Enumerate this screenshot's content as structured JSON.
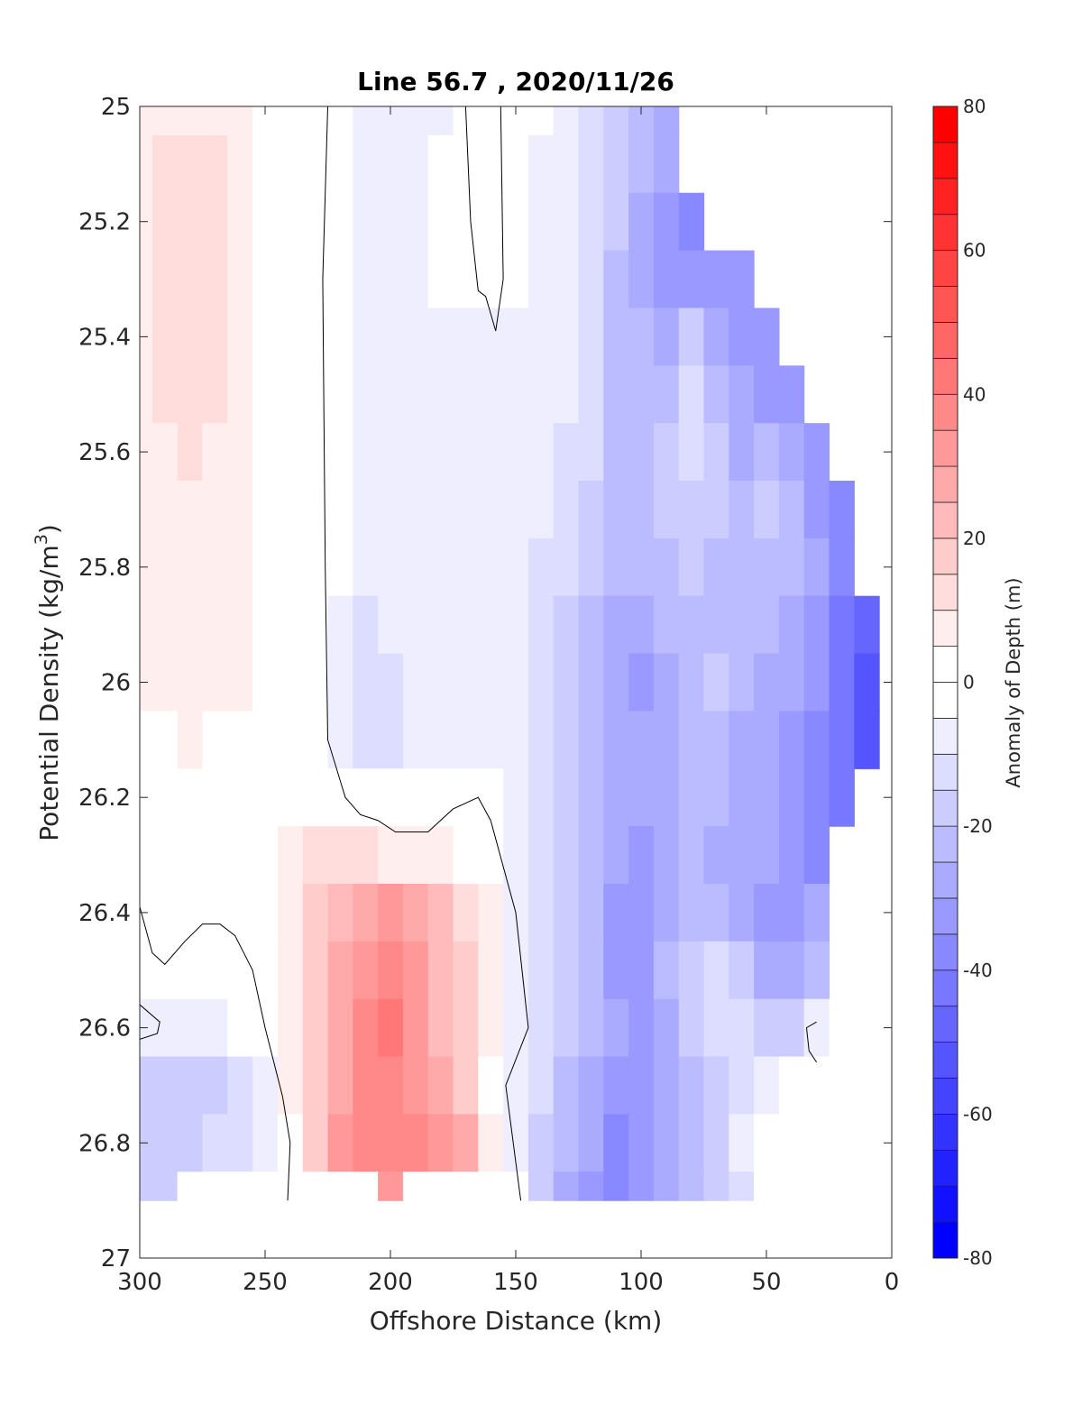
{
  "chart_data": {
    "type": "heatmap",
    "title": "Line 56.7 , 2020/11/26",
    "xlabel": "Offshore Distance (km)",
    "ylabel": "Potential Density (kg/m^3)",
    "ylabel_main": "Potential Density (kg/m",
    "ylabel_sup": "3",
    "ylabel_close": ")",
    "colorbar_label": "Anomaly of Depth (m)",
    "xlim": [
      300,
      0
    ],
    "ylim": [
      25,
      27
    ],
    "data_ylim": [
      25,
      26.9
    ],
    "x_ticks": [
      300,
      250,
      200,
      150,
      100,
      50,
      0
    ],
    "x_tick_labels": [
      "300",
      "250",
      "200",
      "150",
      "100",
      "50",
      "0"
    ],
    "y_ticks": [
      25,
      25.2,
      25.4,
      25.6,
      25.8,
      26,
      26.2,
      26.4,
      26.6,
      26.8,
      27
    ],
    "y_tick_labels": [
      "25",
      "25.2",
      "25.4",
      "25.6",
      "25.8",
      "26",
      "26.2",
      "26.4",
      "26.6",
      "26.8",
      "27"
    ],
    "colorbar_range": [
      -80,
      80
    ],
    "contour_step": 5,
    "colorbar_ticks": [
      80,
      60,
      40,
      20,
      0,
      -20,
      -40,
      -60,
      -80
    ],
    "colorbar_tick_labels": [
      "80",
      "60",
      "40",
      "20",
      "0",
      "-20",
      "-40",
      "-60",
      "-80"
    ],
    "colors": {
      "positive": "#ff0000",
      "negative": "#0000ff",
      "zero": "#ffffff",
      "contour": "#000000"
    },
    "x": [
      300,
      290,
      280,
      270,
      260,
      250,
      240,
      230,
      220,
      210,
      200,
      190,
      180,
      170,
      160,
      150,
      140,
      130,
      120,
      110,
      100,
      90,
      80,
      70,
      60,
      50,
      40,
      30,
      20,
      10
    ],
    "y": [
      25.0,
      25.1,
      25.2,
      25.3,
      25.4,
      25.5,
      25.6,
      25.7,
      25.8,
      25.9,
      26.0,
      26.1,
      26.2,
      26.3,
      26.4,
      26.5,
      26.6,
      26.7,
      26.8,
      26.9
    ],
    "z": [
      [
        6,
        8,
        9,
        8,
        7,
        3,
        0,
        0,
        -2,
        -6,
        -6,
        -6,
        -6,
        0,
        0,
        -2,
        -4,
        -6,
        -10,
        -15,
        -20,
        -25,
        null,
        null,
        null,
        null,
        null,
        null,
        null,
        null
      ],
      [
        7,
        10,
        12,
        10,
        8,
        3,
        0,
        0,
        -2,
        -6,
        -6,
        -6,
        -2,
        0,
        0,
        -3,
        -5,
        -7,
        -12,
        -18,
        -22,
        -28,
        null,
        null,
        null,
        null,
        null,
        null,
        null,
        null
      ],
      [
        7,
        11,
        13,
        11,
        8,
        3,
        0,
        0,
        -2,
        -6,
        -7,
        -6,
        -2,
        0,
        0,
        -3,
        -5,
        -8,
        -13,
        -18,
        -25,
        -32,
        -38,
        null,
        null,
        null,
        null,
        null,
        null,
        null
      ],
      [
        7,
        11,
        13,
        11,
        8,
        3,
        0,
        0,
        -3,
        -7,
        -7,
        -6,
        -3,
        0,
        -2,
        -4,
        -6,
        -8,
        -14,
        -20,
        -25,
        -30,
        -30,
        -32,
        -33,
        null,
        null,
        null,
        null,
        null
      ],
      [
        7,
        11,
        13,
        11,
        8,
        3,
        0,
        0,
        -3,
        -7,
        -7,
        -6,
        -5,
        -5,
        -5,
        -5,
        -6,
        -8,
        -14,
        -20,
        -22,
        -25,
        -15,
        -25,
        -30,
        -33,
        null,
        null,
        null,
        null
      ],
      [
        6,
        10,
        12,
        10,
        8,
        3,
        0,
        0,
        -3,
        -7,
        -7,
        -6,
        -6,
        -6,
        -6,
        -6,
        -7,
        -9,
        -14,
        -20,
        -22,
        -20,
        -12,
        -20,
        -28,
        -30,
        -32,
        null,
        null,
        null
      ],
      [
        6,
        9,
        11,
        9,
        7,
        3,
        0,
        0,
        -3,
        -7,
        -7,
        -6,
        -6,
        -6,
        -6,
        -6,
        -8,
        -10,
        -14,
        -20,
        -22,
        -15,
        -10,
        -18,
        -25,
        -20,
        -25,
        -33,
        null,
        null
      ],
      [
        6,
        8,
        9,
        8,
        7,
        3,
        0,
        0,
        -3,
        -7,
        -7,
        -6,
        -5,
        -5,
        -6,
        -7,
        -9,
        -12,
        -15,
        -20,
        -22,
        -18,
        -15,
        -18,
        -22,
        -18,
        -22,
        -30,
        -35,
        null
      ],
      [
        6,
        7,
        8,
        7,
        6,
        3,
        0,
        0,
        -3,
        -7,
        -7,
        -7,
        -7,
        -7,
        -7,
        -8,
        -10,
        -14,
        -18,
        -22,
        -22,
        -20,
        -18,
        -20,
        -22,
        -20,
        -22,
        -28,
        -38,
        null
      ],
      [
        6,
        7,
        7,
        7,
        6,
        2,
        0,
        -2,
        -5,
        -10,
        -8,
        -7,
        -7,
        -7,
        -7,
        -9,
        -11,
        -15,
        -20,
        -25,
        -25,
        -22,
        -20,
        -20,
        -22,
        -22,
        -25,
        -30,
        -40,
        -48
      ],
      [
        6,
        6,
        6,
        6,
        5,
        2,
        0,
        -2,
        -5,
        -10,
        -10,
        -7,
        -7,
        -6,
        -6,
        -9,
        -12,
        -16,
        -22,
        -28,
        -30,
        -25,
        -22,
        -18,
        -22,
        -25,
        -28,
        -32,
        -40,
        -50
      ],
      [
        0,
        0,
        6,
        0,
        0,
        0,
        0,
        -2,
        -5,
        -10,
        -10,
        -7,
        -6,
        -6,
        -7,
        -9,
        -12,
        -17,
        -22,
        -28,
        -28,
        -25,
        -20,
        -22,
        -25,
        -25,
        -30,
        -35,
        -42,
        -50
      ],
      [
        0,
        0,
        0,
        0,
        0,
        0,
        0,
        0,
        -2,
        -3,
        -3,
        -3,
        0,
        -2,
        -4,
        -9,
        -12,
        -17,
        -22,
        -27,
        -28,
        -25,
        -22,
        -22,
        -25,
        -28,
        -30,
        -35,
        -40,
        null
      ],
      [
        0,
        0,
        0,
        0,
        0,
        0,
        6,
        10,
        12,
        10,
        8,
        6,
        6,
        4,
        0,
        -8,
        -12,
        -17,
        -22,
        -28,
        -30,
        -25,
        -22,
        -25,
        -25,
        -28,
        -32,
        -35,
        null,
        null
      ],
      [
        0,
        0,
        0,
        0,
        0,
        0,
        8,
        15,
        22,
        28,
        30,
        26,
        20,
        12,
        6,
        -8,
        -12,
        -17,
        -22,
        -30,
        -30,
        -25,
        -22,
        -22,
        -28,
        -30,
        -32,
        -25,
        null,
        null
      ],
      [
        0,
        0,
        0,
        0,
        0,
        0,
        8,
        15,
        25,
        33,
        38,
        30,
        22,
        15,
        6,
        -8,
        -12,
        -18,
        -22,
        -30,
        -30,
        -22,
        -15,
        -12,
        -18,
        -28,
        -25,
        -20,
        null,
        null
      ],
      [
        -5,
        -5,
        -8,
        -5,
        -3,
        0,
        8,
        15,
        25,
        35,
        40,
        32,
        22,
        15,
        6,
        -5,
        -12,
        -18,
        -22,
        -28,
        -30,
        -25,
        -15,
        -10,
        -12,
        -18,
        -15,
        -6,
        0,
        0
      ],
      [
        -15,
        -15,
        -15,
        -15,
        -12,
        -8,
        6,
        15,
        28,
        35,
        38,
        33,
        25,
        18,
        0,
        -5,
        -12,
        -20,
        -25,
        -30,
        -32,
        -25,
        -20,
        -15,
        -10,
        -5,
        0,
        0,
        0,
        0
      ],
      [
        -15,
        -18,
        -15,
        -12,
        -12,
        -8,
        0,
        15,
        30,
        35,
        35,
        35,
        32,
        28,
        5,
        -5,
        -15,
        -22,
        -28,
        -35,
        -32,
        -25,
        -20,
        -15,
        -8,
        -3,
        0,
        0,
        0,
        0
      ],
      [
        -15,
        -15,
        0,
        0,
        0,
        0,
        0,
        0,
        0,
        0,
        30,
        0,
        0,
        0,
        0,
        0,
        -15,
        -25,
        -30,
        -35,
        -32,
        -25,
        -20,
        -15,
        -10,
        0,
        0,
        0,
        null,
        null
      ]
    ],
    "zero_contours": [
      [
        [
          225,
          25.0
        ],
        [
          227,
          25.3
        ],
        [
          226,
          25.8
        ],
        [
          225,
          26.1
        ],
        [
          218,
          26.2
        ],
        [
          212,
          26.23
        ],
        [
          205,
          26.24
        ],
        [
          198,
          26.26
        ],
        [
          185,
          26.26
        ],
        [
          175,
          26.22
        ],
        [
          165,
          26.2
        ],
        [
          160,
          26.24
        ],
        [
          150,
          26.4
        ],
        [
          145,
          26.6
        ],
        [
          154,
          26.7
        ],
        [
          148,
          26.9
        ]
      ],
      [
        [
          170,
          25.0
        ],
        [
          168,
          25.2
        ],
        [
          165,
          25.32
        ],
        [
          162,
          25.33
        ],
        [
          158,
          25.39
        ],
        [
          155,
          25.3
        ],
        [
          156,
          25.0
        ]
      ],
      [
        [
          300,
          26.39
        ],
        [
          295,
          26.47
        ],
        [
          290,
          26.49
        ],
        [
          282,
          26.45
        ],
        [
          275,
          26.42
        ],
        [
          268,
          26.42
        ],
        [
          262,
          26.44
        ],
        [
          255,
          26.5
        ],
        [
          250,
          26.6
        ],
        [
          243,
          26.72
        ],
        [
          240,
          26.8
        ],
        [
          241,
          26.9
        ]
      ],
      [
        [
          300,
          26.56
        ],
        [
          292,
          26.59
        ],
        [
          293,
          26.61
        ],
        [
          300,
          26.62
        ]
      ],
      [
        [
          30,
          26.59
        ],
        [
          34,
          26.6
        ],
        [
          33,
          26.64
        ],
        [
          30,
          26.66
        ]
      ]
    ]
  }
}
